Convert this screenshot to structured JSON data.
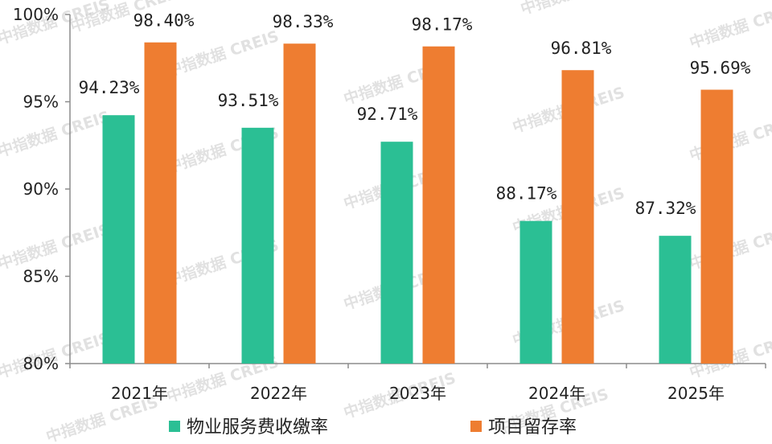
{
  "colors": {
    "series1": "#2bbf94",
    "series2": "#ee7d31",
    "axis": "#8c8c8c",
    "watermark": "#c9c9c9"
  },
  "watermark": {
    "text": "中指数据 CREIS"
  },
  "chart_data": {
    "type": "bar",
    "categories": [
      "2021年",
      "2022年",
      "2023年",
      "2024年",
      "2025年"
    ],
    "series": [
      {
        "name": "物业服务费收缴率",
        "values": [
          94.23,
          93.51,
          92.71,
          88.17,
          87.32
        ],
        "labels": [
          "94.23%",
          "93.51%",
          "92.71%",
          "88.17%",
          "87.32%"
        ]
      },
      {
        "name": "项目留存率",
        "values": [
          98.4,
          98.33,
          98.17,
          96.81,
          95.69
        ],
        "labels": [
          "98.40%",
          "98.33%",
          "98.17%",
          "96.81%",
          "95.69%"
        ]
      }
    ],
    "ylim": [
      80,
      100
    ],
    "yticks": [
      "80%",
      "85%",
      "90%",
      "95%",
      "100%"
    ],
    "title": "",
    "xlabel": "",
    "ylabel": "",
    "legend_position": "bottom",
    "grid": false
  }
}
